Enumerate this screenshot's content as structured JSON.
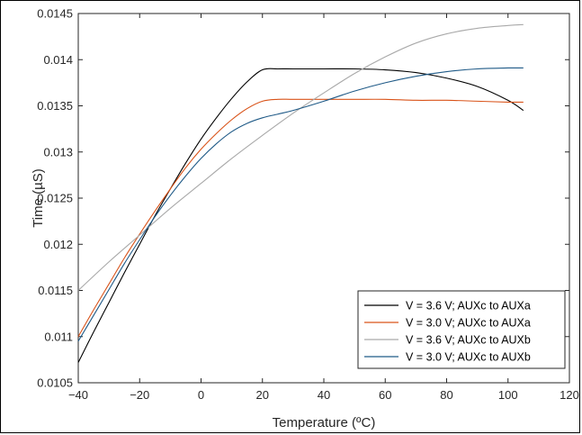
{
  "chart_data": {
    "type": "line",
    "xlabel": "Temperature (ºC)",
    "ylabel": "Time (µS)",
    "xlim": [
      -40,
      120
    ],
    "ylim": [
      0.0105,
      0.0145
    ],
    "x_ticks": [
      "−40",
      "−20",
      "0",
      "20",
      "40",
      "60",
      "80",
      "100",
      "120"
    ],
    "y_ticks": [
      "0.0105",
      "0.011",
      "0.0115",
      "0.012",
      "0.0125",
      "0.013",
      "0.0135",
      "0.014",
      "0.0145"
    ],
    "grid": false,
    "legend_position": "bottom-right",
    "series": [
      {
        "name": "V = 3.6 V; AUXc to AUXa",
        "color": "#000000",
        "x": [
          -40,
          -35,
          -30,
          -25,
          -20,
          -15,
          -10,
          -5,
          0,
          5,
          10,
          15,
          20,
          25,
          30,
          40,
          50,
          60,
          70,
          80,
          90,
          100,
          105
        ],
        "y": [
          0.01072,
          0.01105,
          0.01137,
          0.01169,
          0.012,
          0.01231,
          0.0126,
          0.01288,
          0.01314,
          0.01337,
          0.01358,
          0.01376,
          0.01389,
          0.0139,
          0.0139,
          0.0139,
          0.0139,
          0.01389,
          0.01386,
          0.0138,
          0.01371,
          0.01356,
          0.01345
        ]
      },
      {
        "name": "V = 3.0 V; AUXc to AUXa",
        "color": "#D95319",
        "x": [
          -40,
          -35,
          -30,
          -25,
          -20,
          -15,
          -10,
          -5,
          0,
          5,
          10,
          15,
          20,
          25,
          30,
          40,
          50,
          60,
          70,
          80,
          90,
          100,
          105
        ],
        "y": [
          0.011,
          0.01129,
          0.01157,
          0.01185,
          0.01211,
          0.01236,
          0.0126,
          0.01283,
          0.01303,
          0.0132,
          0.01335,
          0.01347,
          0.01355,
          0.01357,
          0.01357,
          0.01357,
          0.01357,
          0.01357,
          0.01356,
          0.01356,
          0.01355,
          0.01354,
          0.01354
        ]
      },
      {
        "name": "V = 3.6 V; AUXc to AUXb",
        "color": "#A9A9A9",
        "x": [
          -40,
          -30,
          -20,
          -10,
          0,
          10,
          20,
          30,
          40,
          50,
          60,
          70,
          80,
          90,
          100,
          105
        ],
        "y": [
          0.0115,
          0.01181,
          0.0121,
          0.01239,
          0.01266,
          0.01293,
          0.01318,
          0.01342,
          0.01364,
          0.01385,
          0.01403,
          0.01418,
          0.01428,
          0.01434,
          0.01437,
          0.01438
        ]
      },
      {
        "name": "V = 3.0 V; AUXc to AUXb",
        "color": "#1F5A87",
        "x": [
          -40,
          -35,
          -30,
          -25,
          -20,
          -15,
          -10,
          -5,
          0,
          5,
          10,
          15,
          20,
          25,
          30,
          40,
          50,
          60,
          70,
          80,
          90,
          100,
          105
        ],
        "y": [
          0.01095,
          0.01123,
          0.01151,
          0.01179,
          0.01205,
          0.0123,
          0.01253,
          0.01274,
          0.01293,
          0.01309,
          0.01322,
          0.01331,
          0.01337,
          0.01341,
          0.01345,
          0.01355,
          0.01366,
          0.01375,
          0.01382,
          0.01387,
          0.0139,
          0.01391,
          0.01391
        ]
      }
    ]
  }
}
